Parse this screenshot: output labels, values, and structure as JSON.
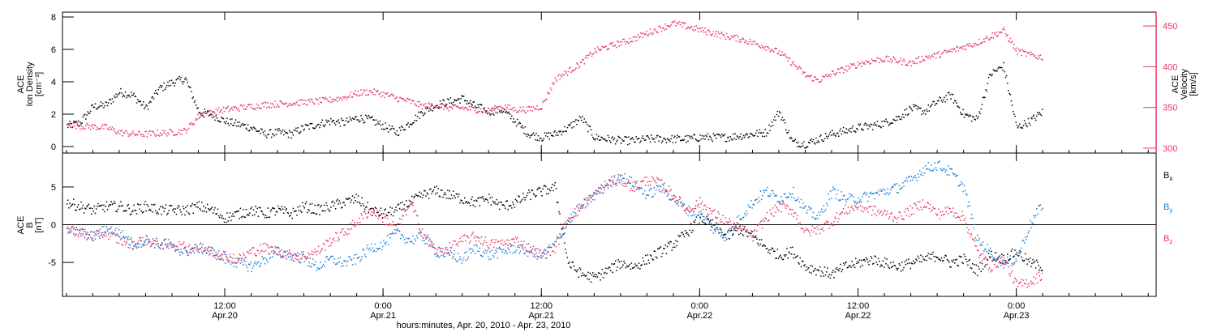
{
  "chart_data": [
    {
      "type": "scatter",
      "panel": "density-velocity",
      "xlabel": "hours:minutes, Apr. 20, 2010 - Apr. 23, 2010",
      "x_ticks": [
        {
          "time": "12:00",
          "date": "Apr.20",
          "hours": 12
        },
        {
          "time": "0:00",
          "date": "Apr.21",
          "hours": 24
        },
        {
          "time": "12:00",
          "date": "Apr.21",
          "hours": 36
        },
        {
          "time": "0:00",
          "date": "Apr.22",
          "hours": 48
        },
        {
          "time": "12:00",
          "date": "Apr.22",
          "hours": 60
        },
        {
          "time": "0:00",
          "date": "Apr.23",
          "hours": 72
        }
      ],
      "xlim_hours": [
        -0.3,
        82.6
      ],
      "y_left": {
        "label_lines": [
          "ACE",
          "Ion Density",
          "[cm⁻³]"
        ],
        "ylim": [
          -0.4,
          8.3
        ],
        "ticks": [
          0,
          2,
          4,
          6,
          8
        ],
        "color": "#000000"
      },
      "y_right": {
        "label_lines": [
          "ACE",
          "Velocity",
          "[km/s]"
        ],
        "ylim": [
          294,
          467
        ],
        "ticks": [
          300,
          350,
          400,
          450
        ],
        "color": "#e8355f"
      },
      "series": [
        {
          "name": "",
          "axis": "left",
          "color": "#000000",
          "x_hours": [
            0,
            1,
            2,
            3,
            4,
            5,
            6,
            7,
            8,
            9,
            10,
            11,
            12,
            13,
            14,
            15,
            16,
            17,
            18,
            19,
            20,
            21,
            22,
            23,
            24,
            25,
            26,
            27,
            28,
            29,
            30,
            31,
            32,
            33,
            34,
            35,
            36,
            37,
            38,
            39,
            40,
            41,
            42,
            43,
            44,
            45,
            46,
            47,
            48,
            49,
            50,
            51,
            52,
            53,
            54,
            55,
            56,
            57,
            58,
            59,
            60,
            61,
            62,
            63,
            64,
            65,
            66,
            67,
            68,
            69,
            70,
            71,
            72,
            73,
            74
          ],
          "values": [
            1.3,
            1.5,
            2.5,
            2.6,
            3.4,
            3.2,
            2.4,
            3.6,
            4.0,
            4.2,
            2.2,
            2.0,
            1.6,
            1.4,
            1.2,
            0.8,
            0.9,
            0.8,
            1.2,
            1.4,
            1.6,
            1.5,
            1.8,
            1.7,
            1.3,
            0.9,
            1.5,
            2.2,
            2.6,
            2.8,
            3.0,
            2.5,
            2.2,
            2.3,
            1.6,
            0.8,
            0.6,
            0.8,
            1.2,
            1.8,
            0.6,
            0.5,
            0.4,
            0.4,
            0.5,
            0.5,
            0.5,
            0.5,
            0.6,
            0.6,
            0.6,
            0.7,
            0.8,
            0.9,
            2.2,
            0.3,
            0.2,
            0.5,
            0.8,
            1.0,
            1.2,
            1.3,
            1.5,
            1.8,
            2.4,
            2.2,
            2.8,
            3.2,
            2.0,
            1.7,
            4.5,
            5.0,
            1.2,
            1.6,
            2.2
          ]
        },
        {
          "name": "",
          "axis": "right",
          "color": "#e8355f",
          "x_hours": [
            0,
            1,
            2,
            3,
            4,
            5,
            6,
            7,
            8,
            9,
            10,
            11,
            12,
            13,
            14,
            15,
            16,
            17,
            18,
            19,
            20,
            21,
            22,
            23,
            24,
            25,
            26,
            27,
            28,
            29,
            30,
            31,
            32,
            33,
            34,
            35,
            36,
            37,
            38,
            39,
            40,
            41,
            42,
            43,
            44,
            45,
            46,
            47,
            48,
            49,
            50,
            51,
            52,
            53,
            54,
            55,
            56,
            57,
            58,
            59,
            60,
            61,
            62,
            63,
            64,
            65,
            66,
            67,
            68,
            69,
            70,
            71,
            72,
            73,
            74
          ],
          "values": [
            330,
            328,
            327,
            326,
            320,
            318,
            318,
            319,
            320,
            322,
            340,
            345,
            348,
            350,
            352,
            354,
            355,
            356,
            357,
            358,
            360,
            363,
            368,
            370,
            367,
            362,
            358,
            352,
            354,
            350,
            350,
            348,
            346,
            352,
            348,
            348,
            352,
            385,
            395,
            405,
            420,
            425,
            430,
            435,
            442,
            448,
            454,
            450,
            446,
            442,
            438,
            435,
            430,
            425,
            418,
            405,
            390,
            384,
            392,
            398,
            404,
            408,
            410,
            408,
            405,
            412,
            415,
            420,
            425,
            430,
            438,
            445,
            420,
            415,
            412
          ]
        }
      ]
    },
    {
      "type": "scatter",
      "panel": "magnetic-field",
      "xlabel": "hours:minutes, Apr. 20, 2010 - Apr. 23, 2010",
      "xlim_hours": [
        -0.3,
        82.6
      ],
      "y_left": {
        "label_lines": [
          "ACE",
          "B",
          "[nT]"
        ],
        "ylim": [
          -9.5,
          9.5
        ],
        "ticks": [
          -5,
          0,
          5
        ],
        "zero_line": true
      },
      "series": [
        {
          "name": "B",
          "subscript": "x",
          "color": "#000000",
          "x_hours": [
            0,
            1,
            2,
            3,
            4,
            5,
            6,
            7,
            8,
            9,
            10,
            11,
            12,
            13,
            14,
            15,
            16,
            17,
            18,
            19,
            20,
            21,
            22,
            23,
            24,
            25,
            26,
            27,
            28,
            29,
            30,
            31,
            32,
            33,
            34,
            35,
            36,
            37,
            38,
            39,
            40,
            41,
            42,
            43,
            44,
            45,
            46,
            47,
            48,
            49,
            50,
            51,
            52,
            53,
            54,
            55,
            56,
            57,
            58,
            59,
            60,
            61,
            62,
            63,
            64,
            65,
            66,
            67,
            68,
            69,
            70,
            71,
            72,
            73,
            74
          ],
          "values": [
            3.0,
            2.5,
            2.0,
            2.5,
            2.5,
            2.0,
            2.5,
            2.0,
            2.0,
            2.0,
            2.5,
            2.0,
            1.0,
            1.5,
            2.0,
            1.5,
            2.0,
            1.5,
            2.5,
            2.0,
            2.5,
            3.0,
            3.5,
            2.0,
            1.5,
            2.0,
            3.0,
            4.0,
            4.5,
            4.0,
            3.5,
            3.0,
            3.5,
            2.5,
            3.0,
            4.0,
            4.5,
            5.0,
            -5.0,
            -6.5,
            -7.0,
            -6.0,
            -5.0,
            -5.5,
            -4.5,
            -3.5,
            -2.5,
            -1.0,
            1.0,
            0.0,
            -1.5,
            -0.5,
            -1.5,
            -3.0,
            -4.0,
            -3.5,
            -5.5,
            -6.0,
            -6.5,
            -5.5,
            -5.0,
            -4.5,
            -5.0,
            -5.5,
            -5.0,
            -4.5,
            -4.0,
            -5.0,
            -4.5,
            -6.0,
            -4.0,
            -4.5,
            -3.5,
            -5.0,
            -5.5
          ]
        },
        {
          "name": "B",
          "subscript": "y",
          "color": "#1a7fd6",
          "x_hours": [
            0,
            1,
            2,
            3,
            4,
            5,
            6,
            7,
            8,
            9,
            10,
            11,
            12,
            13,
            14,
            15,
            16,
            17,
            18,
            19,
            20,
            21,
            22,
            23,
            24,
            25,
            26,
            27,
            28,
            29,
            30,
            31,
            32,
            33,
            34,
            35,
            36,
            37,
            38,
            39,
            40,
            41,
            42,
            43,
            44,
            45,
            46,
            47,
            48,
            49,
            50,
            51,
            52,
            53,
            54,
            55,
            56,
            57,
            58,
            59,
            60,
            61,
            62,
            63,
            64,
            65,
            66,
            67,
            68,
            69,
            70,
            71,
            72,
            73,
            74
          ],
          "values": [
            -0.5,
            -1.0,
            -1.5,
            -0.5,
            -1.0,
            -2.5,
            -2.0,
            -2.5,
            -3.0,
            -3.5,
            -3.0,
            -3.5,
            -4.5,
            -5.0,
            -5.5,
            -4.5,
            -3.5,
            -4.0,
            -4.5,
            -5.5,
            -4.5,
            -5.0,
            -4.5,
            -3.0,
            -2.5,
            -1.0,
            -2.0,
            -1.5,
            -3.5,
            -4.0,
            -4.5,
            -3.0,
            -4.0,
            -3.5,
            -3.0,
            -3.5,
            -4.0,
            -2.5,
            0.5,
            2.5,
            4.0,
            5.5,
            6.5,
            5.5,
            4.0,
            5.0,
            3.5,
            2.0,
            1.5,
            -0.5,
            -1.5,
            1.0,
            3.0,
            4.5,
            3.5,
            4.5,
            2.0,
            1.0,
            4.5,
            3.5,
            3.5,
            4.0,
            4.5,
            5.0,
            6.0,
            7.5,
            8.0,
            7.0,
            5.0,
            -2.0,
            -3.5,
            -5.0,
            -4.5,
            0.0,
            3.0
          ]
        },
        {
          "name": "B",
          "subscript": "z",
          "color": "#e8355f",
          "x_hours": [
            0,
            1,
            2,
            3,
            4,
            5,
            6,
            7,
            8,
            9,
            10,
            11,
            12,
            13,
            14,
            15,
            16,
            17,
            18,
            19,
            20,
            21,
            22,
            23,
            24,
            25,
            26,
            27,
            28,
            29,
            30,
            31,
            32,
            33,
            34,
            35,
            36,
            37,
            38,
            39,
            40,
            41,
            42,
            43,
            44,
            45,
            46,
            47,
            48,
            49,
            50,
            51,
            52,
            53,
            54,
            55,
            56,
            57,
            58,
            59,
            60,
            61,
            62,
            63,
            64,
            65,
            66,
            67,
            68,
            69,
            70,
            71,
            72,
            73,
            74
          ],
          "values": [
            -0.5,
            -1.0,
            -1.5,
            -1.0,
            -2.0,
            -2.5,
            -2.0,
            -2.5,
            -2.5,
            -3.0,
            -3.0,
            -3.5,
            -4.0,
            -4.5,
            -3.5,
            -3.0,
            -3.5,
            -4.0,
            -4.0,
            -3.5,
            -2.0,
            -1.0,
            0.5,
            2.0,
            1.0,
            -0.5,
            3.0,
            -1.0,
            -3.5,
            -3.0,
            -2.0,
            -1.5,
            -2.5,
            -2.5,
            -2.0,
            -3.0,
            -4.0,
            -3.0,
            1.0,
            2.5,
            4.0,
            5.5,
            6.0,
            5.0,
            6.0,
            5.5,
            4.0,
            2.0,
            3.0,
            1.5,
            0.5,
            -0.5,
            -1.5,
            1.0,
            2.5,
            2.0,
            -1.0,
            -0.5,
            0.5,
            2.0,
            2.5,
            2.0,
            1.5,
            1.0,
            2.0,
            3.0,
            1.5,
            2.0,
            1.0,
            -3.5,
            -5.5,
            -4.5,
            -8.0,
            -7.5,
            -6.5
          ]
        }
      ]
    }
  ]
}
